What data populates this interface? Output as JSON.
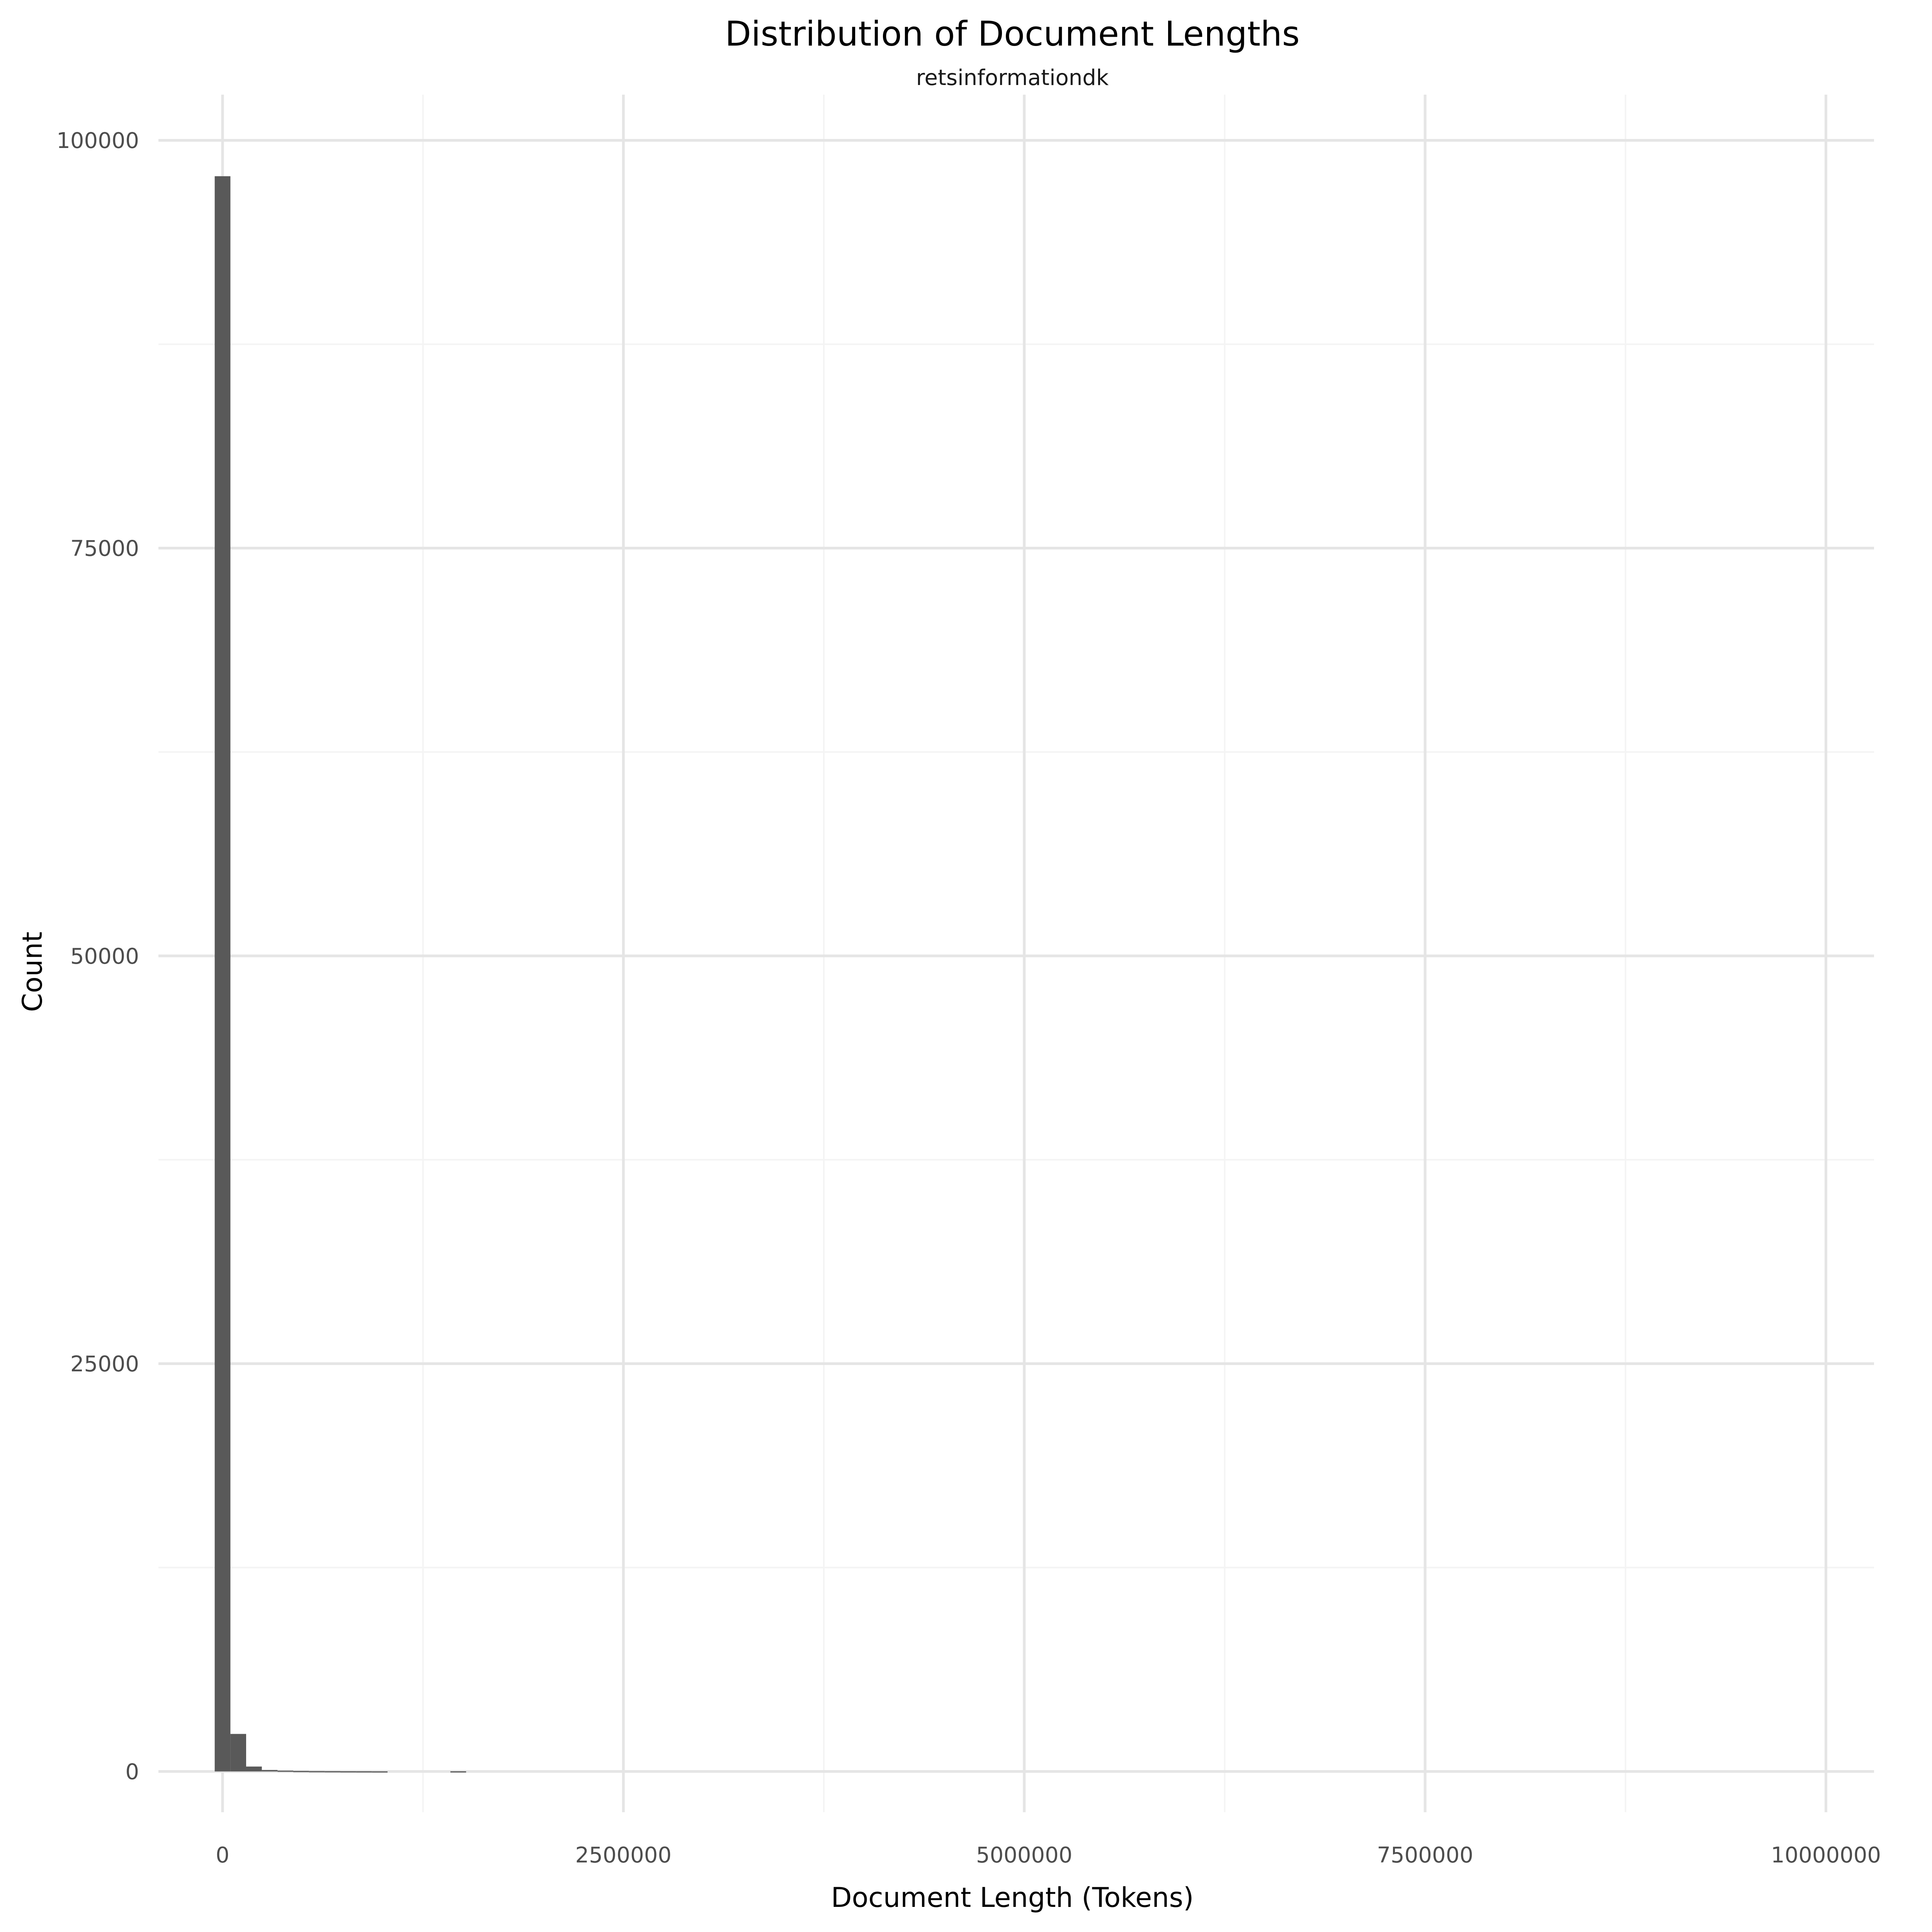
{
  "chart_data": {
    "type": "bar",
    "title": "Distribution of Document Lengths",
    "subtitle": "retsinformationdk",
    "xlabel": "Document Length (Tokens)",
    "ylabel": "Count",
    "xlim": [
      -400000,
      10300000
    ],
    "ylim": [
      -2500,
      102800
    ],
    "x_ticks": [
      0,
      2500000,
      5000000,
      7500000,
      10000000
    ],
    "x_tick_labels": [
      "0",
      "2500000",
      "5000000",
      "7500000",
      "10000000"
    ],
    "y_ticks": [
      0,
      25000,
      50000,
      75000,
      100000
    ],
    "y_tick_labels": [
      "0",
      "25000",
      "50000",
      "75000",
      "100000"
    ],
    "bin_width": 98000,
    "bins": [
      {
        "x": 0,
        "count": 97800
      },
      {
        "x": 98000,
        "count": 2300
      },
      {
        "x": 196000,
        "count": 300
      },
      {
        "x": 294000,
        "count": 90
      },
      {
        "x": 392000,
        "count": 50
      },
      {
        "x": 490000,
        "count": 30
      },
      {
        "x": 588000,
        "count": 20
      },
      {
        "x": 686000,
        "count": 15
      },
      {
        "x": 784000,
        "count": 10
      },
      {
        "x": 882000,
        "count": 8
      },
      {
        "x": 980000,
        "count": 5
      },
      {
        "x": 1470000,
        "count": 8
      }
    ],
    "bar_color": "#595959",
    "grid": true,
    "legend": false
  }
}
